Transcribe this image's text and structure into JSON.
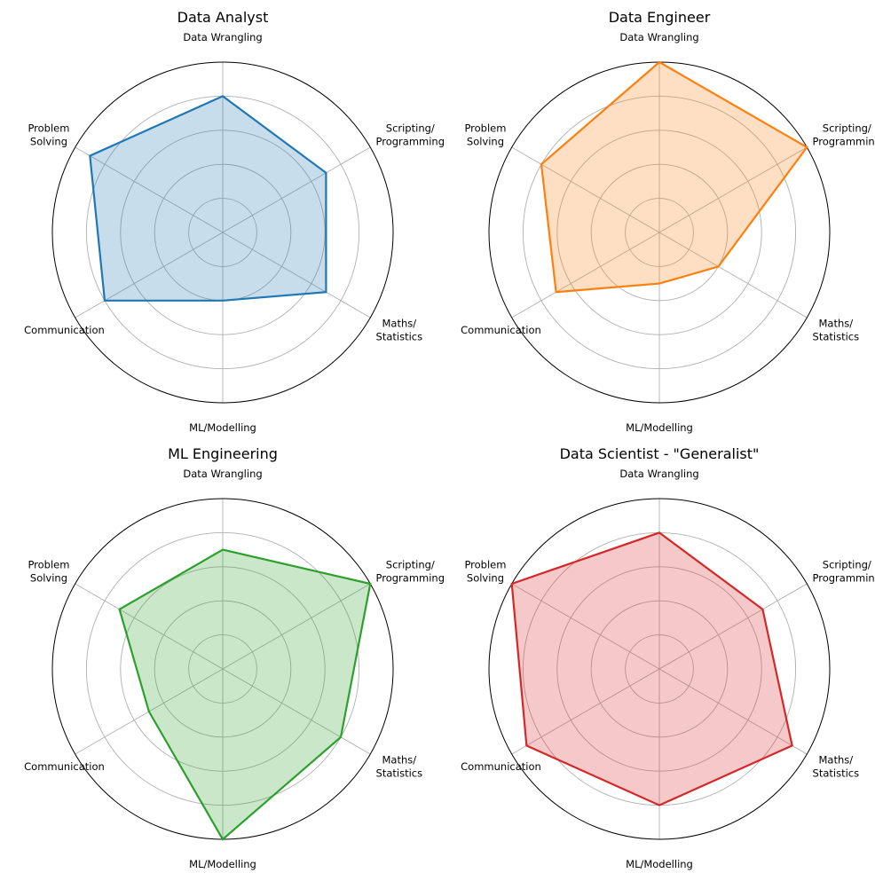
{
  "chart_data": [
    {
      "type": "radar",
      "title": "Data Analyst",
      "color": "#1f77b4",
      "categories": [
        "Data Wrangling",
        "Scripting/\nProgramming",
        "Maths/\nStatistics",
        "ML/Modelling",
        "Communication",
        "Problem\nSolving"
      ],
      "values": [
        4,
        3.5,
        3.5,
        2,
        4,
        4.5
      ],
      "rlim": [
        0,
        5
      ],
      "rticks": [
        1,
        2,
        3,
        4
      ],
      "grid": true
    },
    {
      "type": "radar",
      "title": "Data Engineer",
      "color": "#ff7f0e",
      "categories": [
        "Data Wrangling",
        "Scripting/\nProgramming",
        "Maths/\nStatistics",
        "ML/Modelling",
        "Communication",
        "Problem\nSolving"
      ],
      "values": [
        5,
        5,
        2,
        1.5,
        3.5,
        4
      ],
      "rlim": [
        0,
        5
      ],
      "rticks": [
        1,
        2,
        3,
        4
      ],
      "grid": true
    },
    {
      "type": "radar",
      "title": "ML Engineering",
      "color": "#2ca02c",
      "categories": [
        "Data Wrangling",
        "Scripting/\nProgramming",
        "Maths/\nStatistics",
        "ML/Modelling",
        "Communication",
        "Problem\nSolving"
      ],
      "values": [
        3.5,
        5,
        4,
        5,
        2.5,
        3.5
      ],
      "rlim": [
        0,
        5
      ],
      "rticks": [
        1,
        2,
        3,
        4
      ],
      "grid": true
    },
    {
      "type": "radar",
      "title": "Data Scientist - \"Generalist\"",
      "color": "#d62728",
      "categories": [
        "Data Wrangling",
        "Scripting/\nProgramming",
        "Maths/\nStatistics",
        "ML/Modelling",
        "Communication",
        "Problem\nSolving"
      ],
      "values": [
        4,
        3.5,
        4.5,
        4,
        4.5,
        5
      ],
      "rlim": [
        0,
        5
      ],
      "rticks": [
        1,
        2,
        3,
        4
      ],
      "grid": true
    }
  ]
}
